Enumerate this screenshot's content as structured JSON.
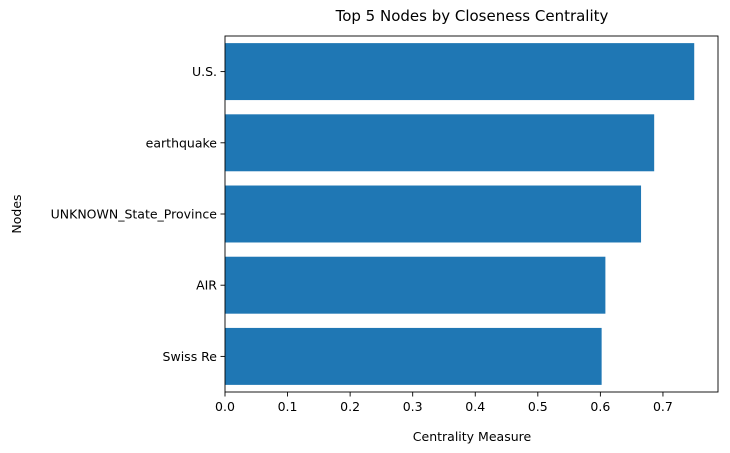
{
  "chart_data": {
    "type": "bar",
    "orientation": "horizontal",
    "title": "Top 5 Nodes by Closeness Centrality",
    "xlabel": "Centrality Measure",
    "ylabel": "Nodes",
    "categories": [
      "U.S.",
      "earthquake",
      "UNKNOWN_State_Province",
      "AIR",
      "Swiss Re"
    ],
    "values": [
      0.75,
      0.686,
      0.665,
      0.608,
      0.602
    ],
    "xlim": [
      0,
      0.788
    ],
    "x_ticks": [
      0.0,
      0.1,
      0.2,
      0.3,
      0.4,
      0.5,
      0.6,
      0.7
    ],
    "x_tick_labels": [
      "0.0",
      "0.1",
      "0.2",
      "0.3",
      "0.4",
      "0.5",
      "0.6",
      "0.7"
    ],
    "grid": false,
    "bar_color": "#1f77b4"
  }
}
